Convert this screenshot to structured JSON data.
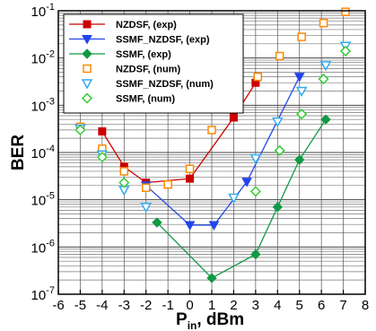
{
  "chart_data": {
    "type": "scatter",
    "title": "",
    "xlabel": "P_in, dBm",
    "xlabel_main": "P",
    "xlabel_sub": "in",
    "xlabel_rest": ", dBm",
    "ylabel": "BER",
    "xlim": [
      -6,
      8
    ],
    "ylim_log10": [
      -7,
      -1
    ],
    "y_scale": "log",
    "grid": true,
    "legend_position": "top-left",
    "x_ticks": [
      {
        "value": -6,
        "label": "-6"
      },
      {
        "value": -5,
        "label": "-5"
      },
      {
        "value": -4,
        "label": "-4"
      },
      {
        "value": -3,
        "label": "-3"
      },
      {
        "value": -2,
        "label": "-2"
      },
      {
        "value": -1,
        "label": "-1"
      },
      {
        "value": 0,
        "label": "0"
      },
      {
        "value": 1,
        "label": "1"
      },
      {
        "value": 2,
        "label": "2"
      },
      {
        "value": 3,
        "label": "3"
      },
      {
        "value": 4,
        "label": "4"
      },
      {
        "value": 5,
        "label": "5"
      },
      {
        "value": 6,
        "label": "6"
      },
      {
        "value": 7,
        "label": "7"
      },
      {
        "value": 8,
        "label": "8"
      }
    ],
    "y_ticks": [
      {
        "exp": -1,
        "base": "10",
        "sup": "-1"
      },
      {
        "exp": -2,
        "base": "10",
        "sup": "-2"
      },
      {
        "exp": -3,
        "base": "10",
        "sup": "-3"
      },
      {
        "exp": -4,
        "base": "10",
        "sup": "-4"
      },
      {
        "exp": -5,
        "base": "10",
        "sup": "-5"
      },
      {
        "exp": -6,
        "base": "10",
        "sup": "-6"
      },
      {
        "exp": -7,
        "base": "10",
        "sup": "-7"
      }
    ],
    "series": [
      {
        "name": "NZDSF, (exp)",
        "color": "#cc0000",
        "marker": "square-filled",
        "line": true,
        "x": [
          -4,
          -3,
          -2,
          0,
          2,
          3
        ],
        "y": [
          0.00028,
          5e-05,
          2.3e-05,
          2.8e-05,
          0.00055,
          0.003
        ]
      },
      {
        "name": "SSMF_NZDSF, (exp)",
        "color": "#2244ee",
        "marker": "triangle-down-filled",
        "line": true,
        "x": [
          -2,
          0,
          1.1,
          2.6,
          5
        ],
        "y": [
          2e-05,
          2.9e-06,
          2.9e-06,
          2.4e-05,
          0.004
        ]
      },
      {
        "name": "SSMF, (exp)",
        "color": "#119944",
        "marker": "diamond-filled",
        "line": true,
        "x": [
          -1.5,
          1,
          3,
          4,
          5,
          6.2
        ],
        "y": [
          3.3e-06,
          2.2e-07,
          7e-07,
          7e-06,
          7e-05,
          0.0005
        ]
      },
      {
        "name": "NZDSF, (num)",
        "color": "#ff8800",
        "marker": "square-open",
        "line": false,
        "x": [
          -5,
          -4,
          -3,
          -2,
          -1,
          0,
          1,
          2.1,
          3.1,
          4.1,
          5.1,
          6.1,
          7.1
        ],
        "y": [
          0.00035,
          0.00012,
          4e-05,
          1.8e-05,
          2.1e-05,
          4.5e-05,
          0.0003,
          0.0011,
          0.004,
          0.011,
          0.028,
          0.055,
          0.095
        ]
      },
      {
        "name": "SSMF_NZDSF, (num)",
        "color": "#33aaee",
        "marker": "triangle-down-open",
        "line": false,
        "x": [
          -5,
          -4,
          -3,
          -2,
          2,
          3,
          4,
          5.1,
          6.2,
          7.1
        ],
        "y": [
          0.00032,
          9e-05,
          1.6e-05,
          7e-06,
          1.1e-05,
          7.5e-05,
          0.00045,
          0.002,
          0.007,
          0.018
        ]
      },
      {
        "name": "SSMF, (num)",
        "color": "#33cc33",
        "marker": "diamond-open",
        "line": false,
        "x": [
          -5,
          -4,
          -3,
          3,
          4.1,
          5.1,
          6.1,
          7.1
        ],
        "y": [
          0.0003,
          8e-05,
          2.3e-05,
          1.5e-05,
          0.00011,
          0.00065,
          0.0036,
          0.014
        ]
      }
    ]
  }
}
